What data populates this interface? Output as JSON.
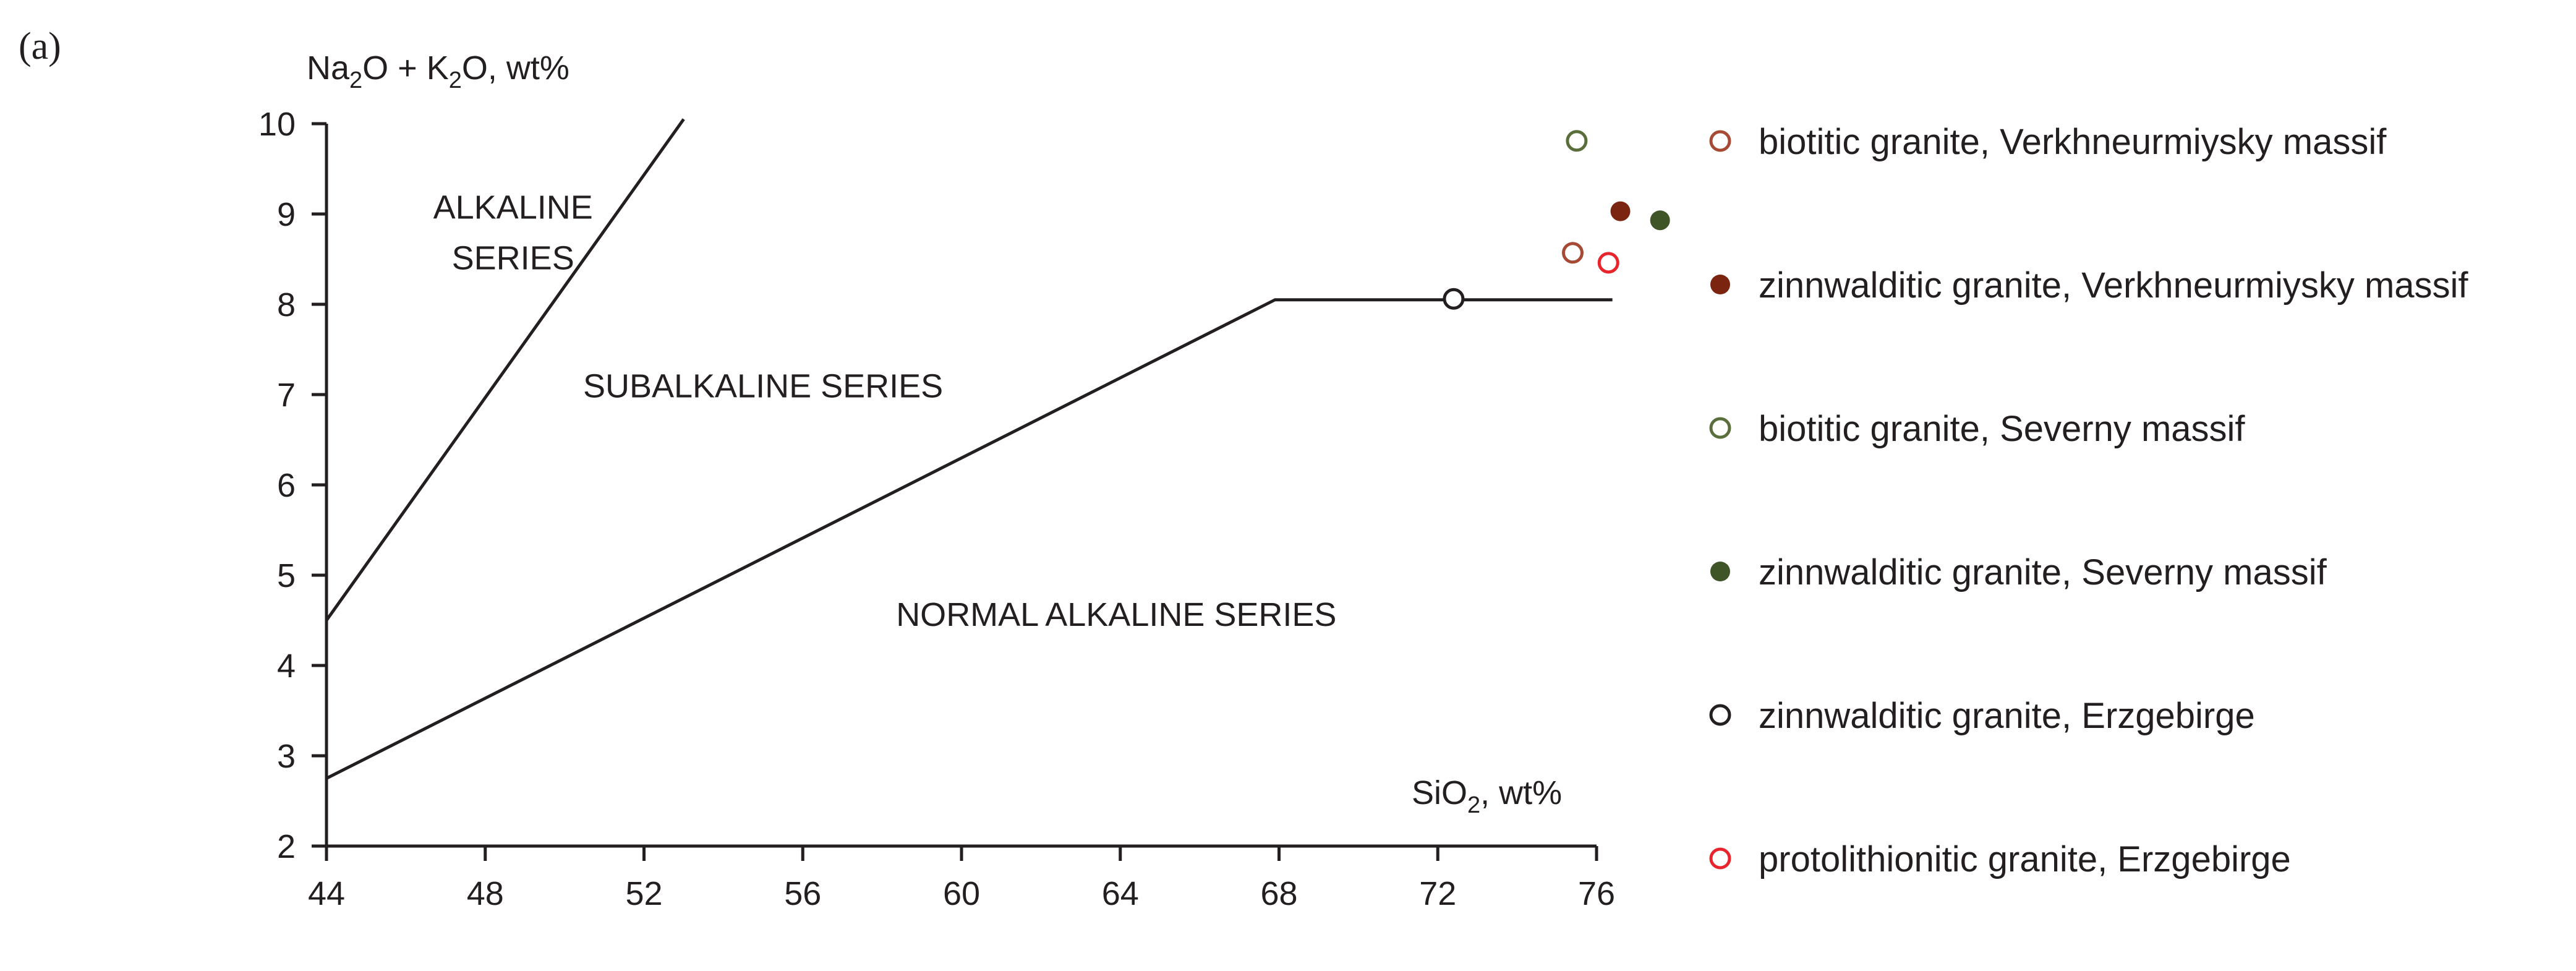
{
  "panel_label": "(a)",
  "chart_data": {
    "type": "scatter",
    "title": "",
    "ylabel": {
      "base1": "Na",
      "sub1": "2",
      "base2": "O + K",
      "sub2": "2",
      "base3": "O, wt%"
    },
    "xlabel": {
      "base1": "SiO",
      "sub1": "2",
      "base2": ", wt%"
    },
    "xlim": [
      44,
      76
    ],
    "ylim": [
      2,
      10
    ],
    "x_ticks": [
      44,
      48,
      52,
      56,
      60,
      64,
      68,
      72,
      76
    ],
    "y_ticks": [
      2,
      3,
      4,
      5,
      6,
      7,
      8,
      9,
      10
    ],
    "grid": false,
    "legend_position": "right",
    "boundaries": [
      {
        "name": "alkaline-subalkaline",
        "points": [
          [
            44,
            4.5
          ],
          [
            53,
            10.05
          ]
        ]
      },
      {
        "name": "subalkaline-normal",
        "points": [
          [
            44,
            2.75
          ],
          [
            67.9,
            8.05
          ],
          [
            76.4,
            8.05
          ]
        ]
      }
    ],
    "regions": [
      {
        "label_lines": [
          "ALKALINE",
          "SERIES"
        ],
        "x": 48.7,
        "y": 8.95
      },
      {
        "label_lines": [
          "SUBALKALINE SERIES"
        ],
        "x": 55.0,
        "y": 6.97
      },
      {
        "label_lines": [
          "NORMAL ALKALINE SERIES"
        ],
        "x": 63.9,
        "y": 4.44
      }
    ],
    "series": [
      {
        "name": "biotitic granite, Verkhneurmiysky massif",
        "marker": "open",
        "color": "#a64a36",
        "points": [
          [
            75.4,
            8.57
          ]
        ]
      },
      {
        "name": "zinnwalditic granite, Verkhneurmiysky massif",
        "marker": "filled",
        "color": "#7b2510",
        "points": [
          [
            76.6,
            9.03
          ]
        ]
      },
      {
        "name": "biotitic granite, Severny massif",
        "marker": "open",
        "color": "#5a6e3c",
        "points": [
          [
            75.5,
            9.81
          ]
        ]
      },
      {
        "name": "zinnwalditic granite, Severny massif",
        "marker": "filled",
        "color": "#3f5527",
        "points": [
          [
            77.6,
            8.93
          ]
        ]
      },
      {
        "name": "zinnwalditic granite, Erzgebirge",
        "marker": "open",
        "color": "#231f20",
        "points": [
          [
            72.4,
            8.06
          ]
        ]
      },
      {
        "name": "protolithionitic granite, Erzgebirge",
        "marker": "open",
        "color": "#e8242c",
        "points": [
          [
            76.3,
            8.46
          ]
        ]
      }
    ]
  }
}
